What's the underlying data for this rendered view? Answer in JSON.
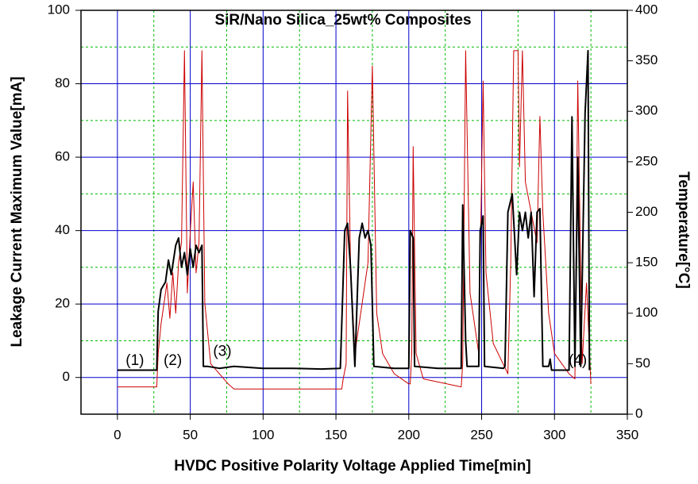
{
  "chart_data": {
    "type": "line",
    "title": "SiR/Nano Silica_25wt% Composites",
    "x_label": "HVDC Positive Polarity Voltage Applied Time[min]",
    "y_label": "Leakage Current Maximum Value[mA]",
    "y2_label": "Temperature[°C]",
    "xlim": [
      -25,
      350
    ],
    "xticks": [
      0,
      50,
      100,
      150,
      200,
      250,
      300,
      350
    ],
    "ylim": [
      -10,
      100
    ],
    "yticks": [
      0,
      20,
      40,
      60,
      80,
      100
    ],
    "y2lim": [
      0,
      400
    ],
    "y2ticks": [
      0,
      50,
      100,
      150,
      200,
      250,
      300,
      350,
      400
    ],
    "minor_xticks": [
      -25,
      25,
      75,
      125,
      175,
      225,
      275,
      325
    ],
    "minor_yticks": [
      -10,
      10,
      30,
      50,
      70,
      90
    ],
    "grid": true,
    "annotations": [
      {
        "text": "(1)",
        "x": 12,
        "y": 4.5
      },
      {
        "text": "(2)",
        "x": 38,
        "y": 4.5
      },
      {
        "text": "(3)",
        "x": 72,
        "y": 7
      },
      {
        "text": "(4)",
        "x": 316,
        "y": 4.5
      }
    ],
    "series": [
      {
        "name": "Leakage Current",
        "color": "#000000",
        "axis": "y",
        "x": [
          0,
          27,
          28,
          30,
          33,
          35,
          37,
          40,
          42,
          44,
          46,
          48,
          50,
          52,
          54,
          56,
          58,
          59,
          62,
          70,
          80,
          100,
          120,
          140,
          153,
          156,
          158,
          160,
          163,
          166,
          168,
          170,
          172,
          174,
          176,
          190,
          200,
          201,
          203,
          204,
          220,
          236,
          237,
          239,
          240,
          248,
          249,
          251,
          252,
          265,
          266,
          268,
          271,
          274,
          276,
          278,
          280,
          282,
          284,
          286,
          288,
          290,
          292,
          296,
          297,
          298,
          310,
          312,
          314,
          316,
          318,
          321,
          323,
          324
        ],
        "values": [
          2,
          2,
          18,
          24,
          26,
          32,
          28,
          36,
          38,
          30,
          34,
          28,
          35,
          30,
          36,
          34,
          36,
          3,
          3,
          2.5,
          3,
          2.5,
          2.5,
          2.3,
          2.5,
          40,
          42,
          30,
          3,
          38,
          42,
          38,
          40,
          36,
          3,
          2.5,
          2.5,
          40,
          38,
          3,
          2.5,
          2.5,
          47,
          10,
          3,
          3,
          40,
          44,
          3,
          2.5,
          3,
          45,
          50,
          28,
          45,
          40,
          45,
          38,
          45,
          22,
          45,
          46,
          3,
          3,
          5,
          2,
          2,
          71,
          3,
          60,
          3,
          72,
          89,
          2
        ]
      },
      {
        "name": "Temperature",
        "color": "#cc0000",
        "axis": "y2",
        "x": [
          0,
          27,
          28,
          30,
          32,
          34,
          36,
          38,
          40,
          42,
          44,
          46,
          48,
          50,
          52,
          54,
          56,
          58,
          60,
          64,
          70,
          76,
          80,
          100,
          130,
          150,
          154,
          155,
          157,
          158,
          160,
          163,
          168,
          172,
          175,
          178,
          182,
          190,
          200,
          201,
          202,
          203,
          205,
          210,
          236,
          237,
          239,
          242,
          248,
          251,
          253,
          258,
          268,
          270,
          272,
          275,
          276,
          278,
          280,
          284,
          288,
          290,
          292,
          296,
          300,
          310,
          314,
          316,
          319,
          322,
          325
        ],
        "values": [
          27,
          27,
          60,
          90,
          110,
          130,
          95,
          140,
          100,
          150,
          170,
          360,
          120,
          180,
          230,
          140,
          170,
          360,
          110,
          50,
          40,
          30,
          25,
          25,
          25,
          25,
          25,
          35,
          50,
          320,
          150,
          60,
          110,
          150,
          345,
          100,
          60,
          40,
          30,
          30,
          60,
          265,
          60,
          35,
          27,
          50,
          360,
          120,
          60,
          330,
          140,
          70,
          40,
          150,
          360,
          360,
          245,
          360,
          230,
          200,
          170,
          295,
          200,
          100,
          60,
          40,
          35,
          330,
          50,
          130,
          30
        ]
      }
    ]
  }
}
